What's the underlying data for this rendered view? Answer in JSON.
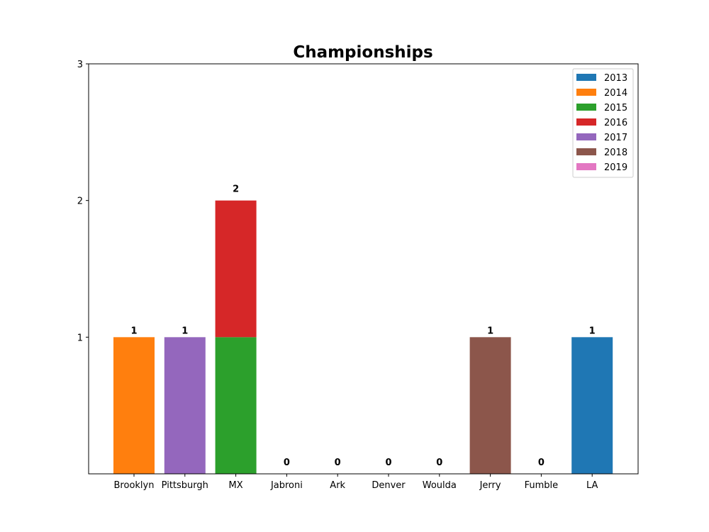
{
  "chart_data": {
    "type": "bar",
    "stacked": true,
    "title": "Championships",
    "xlabel": "",
    "ylabel": "",
    "categories": [
      "Brooklyn",
      "Pittsburgh",
      "MX",
      "Jabroni",
      "Ark",
      "Denver",
      "Woulda",
      "Jerry",
      "Fumble",
      "LA"
    ],
    "ylim": [
      0,
      3
    ],
    "yticks": [
      1,
      2,
      3
    ],
    "series": [
      {
        "name": "2013",
        "color": "#1f77b4",
        "values": [
          0,
          0,
          0,
          0,
          0,
          0,
          0,
          0,
          0,
          1
        ]
      },
      {
        "name": "2014",
        "color": "#ff7f0e",
        "values": [
          1,
          0,
          0,
          0,
          0,
          0,
          0,
          0,
          0,
          0
        ]
      },
      {
        "name": "2015",
        "color": "#2ca02c",
        "values": [
          0,
          0,
          1,
          0,
          0,
          0,
          0,
          0,
          0,
          0
        ]
      },
      {
        "name": "2016",
        "color": "#d62728",
        "values": [
          0,
          0,
          1,
          0,
          0,
          0,
          0,
          0,
          0,
          0
        ]
      },
      {
        "name": "2017",
        "color": "#9467bd",
        "values": [
          0,
          1,
          0,
          0,
          0,
          0,
          0,
          0,
          0,
          0
        ]
      },
      {
        "name": "2018",
        "color": "#8c564b",
        "values": [
          0,
          0,
          0,
          0,
          0,
          0,
          0,
          1,
          0,
          0
        ]
      },
      {
        "name": "2019",
        "color": "#e377c2",
        "values": [
          0,
          0,
          0,
          0,
          0,
          0,
          0,
          0,
          0,
          0
        ]
      }
    ],
    "totals": [
      1,
      1,
      2,
      0,
      0,
      0,
      0,
      1,
      0,
      1
    ],
    "legend": {
      "placement": "top-right"
    },
    "grid": false
  }
}
